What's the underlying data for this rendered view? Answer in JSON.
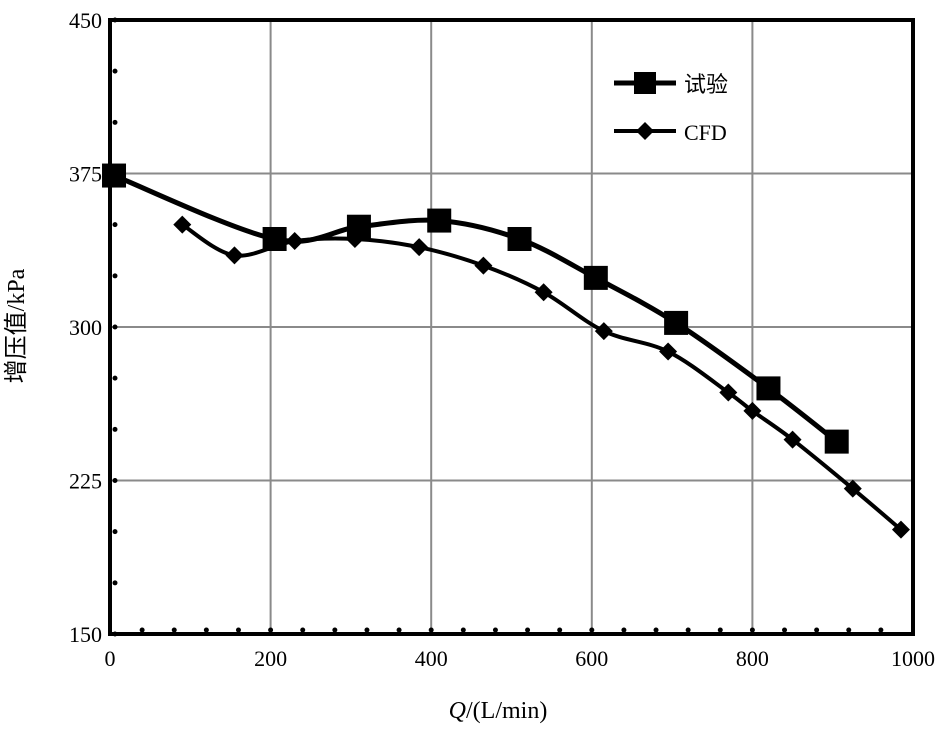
{
  "chart_data": {
    "type": "line",
    "xlabel_var": "Q",
    "xlabel_unit": "/(L/min)",
    "ylabel": "增压值/kPa",
    "xlim": [
      0,
      1000
    ],
    "ylim": [
      150,
      450
    ],
    "x_ticks": [
      "0",
      "200",
      "400",
      "600",
      "800",
      "1000"
    ],
    "y_ticks": [
      "150",
      "225",
      "300",
      "375",
      "450"
    ],
    "grid": true,
    "legend_position": "top-right",
    "series": [
      {
        "name": "试验",
        "marker": "square",
        "color": "#000000",
        "x": [
          5,
          205,
          310,
          410,
          510,
          605,
          705,
          820,
          905
        ],
        "y": [
          374,
          343,
          349,
          352,
          343,
          324,
          302,
          270,
          244
        ]
      },
      {
        "name": "CFD",
        "marker": "diamond",
        "color": "#000000",
        "x": [
          90,
          155,
          230,
          305,
          385,
          465,
          540,
          615,
          695,
          770,
          800,
          850,
          925,
          985
        ],
        "y": [
          350,
          335,
          342,
          343,
          339,
          330,
          317,
          298,
          288,
          268,
          259,
          245,
          221,
          201
        ]
      }
    ]
  }
}
